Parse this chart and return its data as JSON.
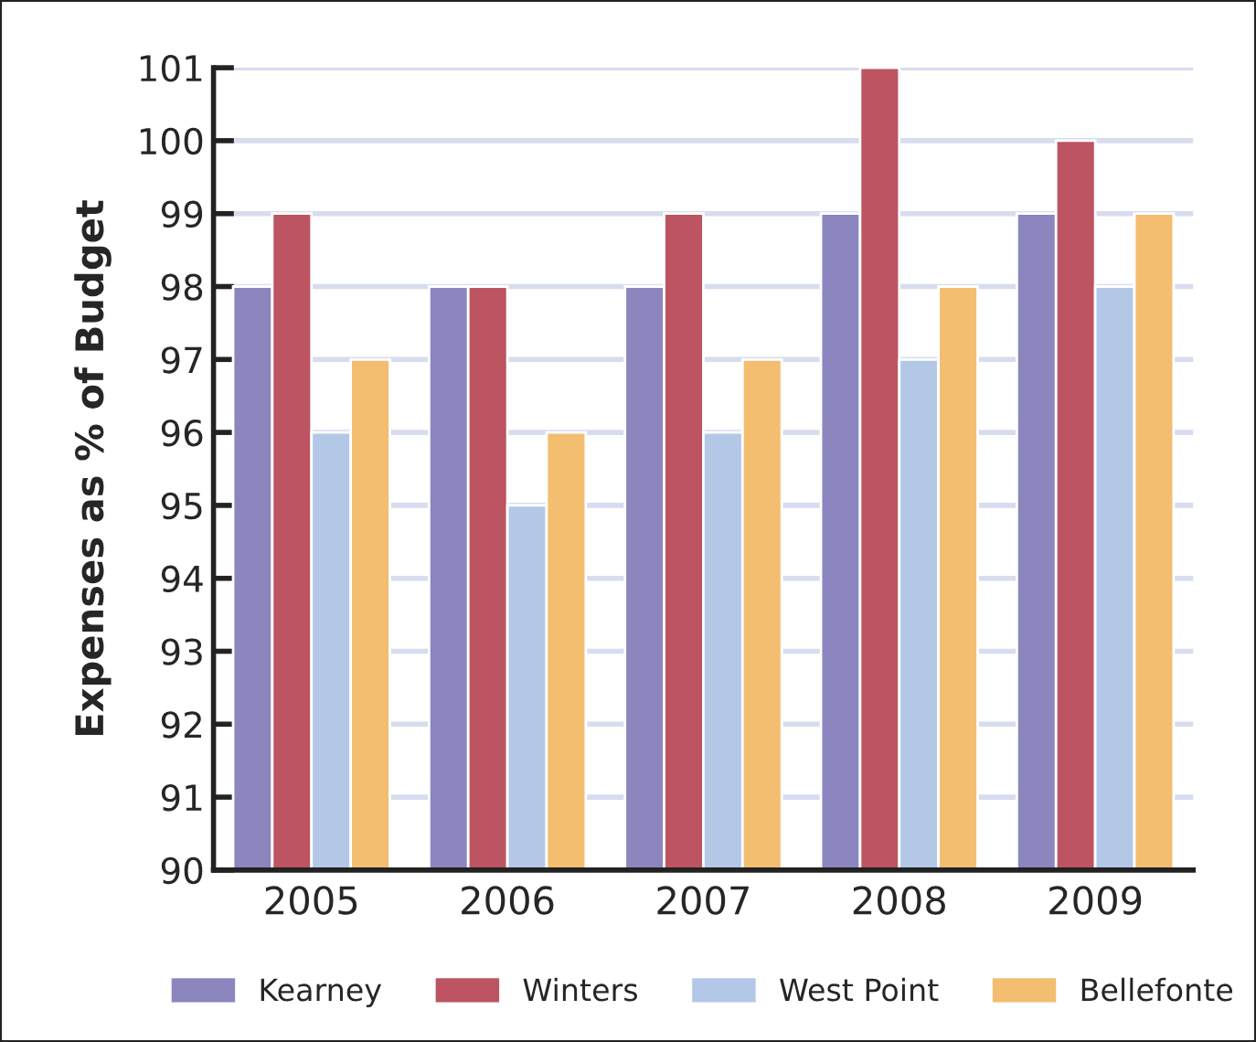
{
  "chart_data": {
    "type": "bar",
    "ylabel": "Expenses as % of Budget",
    "categories": [
      "2005",
      "2006",
      "2007",
      "2008",
      "2009"
    ],
    "series": [
      {
        "name": "Kearney",
        "color": "#8b86be",
        "values": [
          98,
          98,
          98,
          99,
          99
        ]
      },
      {
        "name": "Winters",
        "color": "#bd5461",
        "values": [
          99,
          98,
          99,
          101,
          100
        ]
      },
      {
        "name": "West Point",
        "color": "#b3c8e7",
        "values": [
          96,
          95,
          96,
          97,
          98
        ]
      },
      {
        "name": "Bellefonte",
        "color": "#f3be70",
        "values": [
          97,
          96,
          97,
          98,
          99
        ]
      }
    ],
    "ylim": [
      90,
      101
    ],
    "yticks": [
      90,
      91,
      92,
      93,
      94,
      95,
      96,
      97,
      98,
      99,
      100,
      101
    ],
    "grid": "y",
    "legend": "bottom"
  }
}
